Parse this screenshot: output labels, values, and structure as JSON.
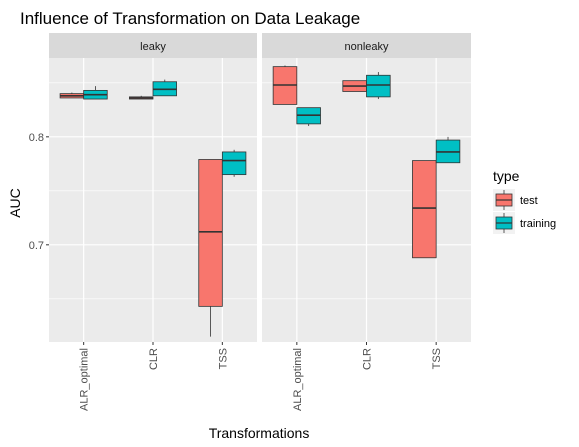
{
  "chart_data": {
    "type": "boxplot",
    "title": "Influence of Transformation on Data Leakage",
    "xlabel": "Transformations",
    "ylabel": "AUC",
    "ylim": [
      0.61,
      0.873
    ],
    "y_ticks": [
      0.7,
      0.8
    ],
    "y_tick_labels": [
      "0.7",
      "0.8"
    ],
    "categories": [
      "ALR_optimal",
      "CLR",
      "TSS"
    ],
    "grid": true,
    "legend": {
      "title": "type",
      "position": "right",
      "entries": [
        {
          "name": "test",
          "color": "#F8766D"
        },
        {
          "name": "training",
          "color": "#00BFC4"
        }
      ]
    },
    "panels": [
      {
        "name": "leaky",
        "boxes": [
          {
            "category": "ALR_optimal",
            "type": "test",
            "min": 0.836,
            "q1": 0.836,
            "median": 0.838,
            "q3": 0.84,
            "max": 0.841
          },
          {
            "category": "ALR_optimal",
            "type": "training",
            "min": 0.835,
            "q1": 0.835,
            "median": 0.839,
            "q3": 0.843,
            "max": 0.847
          },
          {
            "category": "CLR",
            "type": "test",
            "min": 0.835,
            "q1": 0.835,
            "median": 0.836,
            "q3": 0.837,
            "max": 0.838
          },
          {
            "category": "CLR",
            "type": "training",
            "min": 0.838,
            "q1": 0.838,
            "median": 0.844,
            "q3": 0.851,
            "max": 0.853
          },
          {
            "category": "TSS",
            "type": "test",
            "min": 0.615,
            "q1": 0.643,
            "median": 0.712,
            "q3": 0.779,
            "max": 0.779
          },
          {
            "category": "TSS",
            "type": "training",
            "min": 0.763,
            "q1": 0.765,
            "median": 0.778,
            "q3": 0.786,
            "max": 0.788
          }
        ]
      },
      {
        "name": "nonleaky",
        "boxes": [
          {
            "category": "ALR_optimal",
            "type": "test",
            "min": 0.83,
            "q1": 0.83,
            "median": 0.848,
            "q3": 0.865,
            "max": 0.866
          },
          {
            "category": "ALR_optimal",
            "type": "training",
            "min": 0.81,
            "q1": 0.812,
            "median": 0.82,
            "q3": 0.827,
            "max": 0.827
          },
          {
            "category": "CLR",
            "type": "test",
            "min": 0.842,
            "q1": 0.842,
            "median": 0.847,
            "q3": 0.852,
            "max": 0.852
          },
          {
            "category": "CLR",
            "type": "training",
            "min": 0.835,
            "q1": 0.837,
            "median": 0.848,
            "q3": 0.857,
            "max": 0.86
          },
          {
            "category": "TSS",
            "type": "test",
            "min": 0.688,
            "q1": 0.688,
            "median": 0.734,
            "q3": 0.778,
            "max": 0.778
          },
          {
            "category": "TSS",
            "type": "training",
            "min": 0.776,
            "q1": 0.776,
            "median": 0.786,
            "q3": 0.797,
            "max": 0.8
          }
        ]
      }
    ]
  }
}
